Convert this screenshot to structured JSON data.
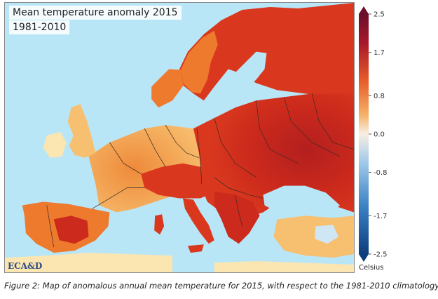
{
  "map": {
    "title_line1": "Mean temperature anomaly 2015",
    "title_line2": "1981-2010",
    "logo_text": "ECA&D",
    "colors": {
      "sea": "#b9e6f7",
      "very_hot": "#b31f1f",
      "hot": "#d9381e",
      "warm": "#ee7a2e",
      "mild": "#f7c070",
      "slight": "#fbe5b0",
      "neutral": "#f4f4f4",
      "cool": "#cfe6f5",
      "borders": "#3a2a20"
    }
  },
  "legend": {
    "unit": "Celsius",
    "ticks": [
      "2.5",
      "1.7",
      "0.8",
      "0.0",
      "-0.8",
      "-1.7",
      "-2.5"
    ],
    "tick_values": [
      2.5,
      1.7,
      0.8,
      0.0,
      -0.8,
      -1.7,
      -2.5
    ],
    "min": -2.5,
    "max": 2.5,
    "gradient": [
      "#6b0f2a",
      "#c21e25",
      "#e85d2b",
      "#f5b268",
      "#f7efe3",
      "#9fc9e8",
      "#3b82c4",
      "#0d3d7c"
    ]
  },
  "caption": "Figure 2: Map of anomalous annual mean temperature for 2015, with respect to the 1981-2010 climatology."
}
